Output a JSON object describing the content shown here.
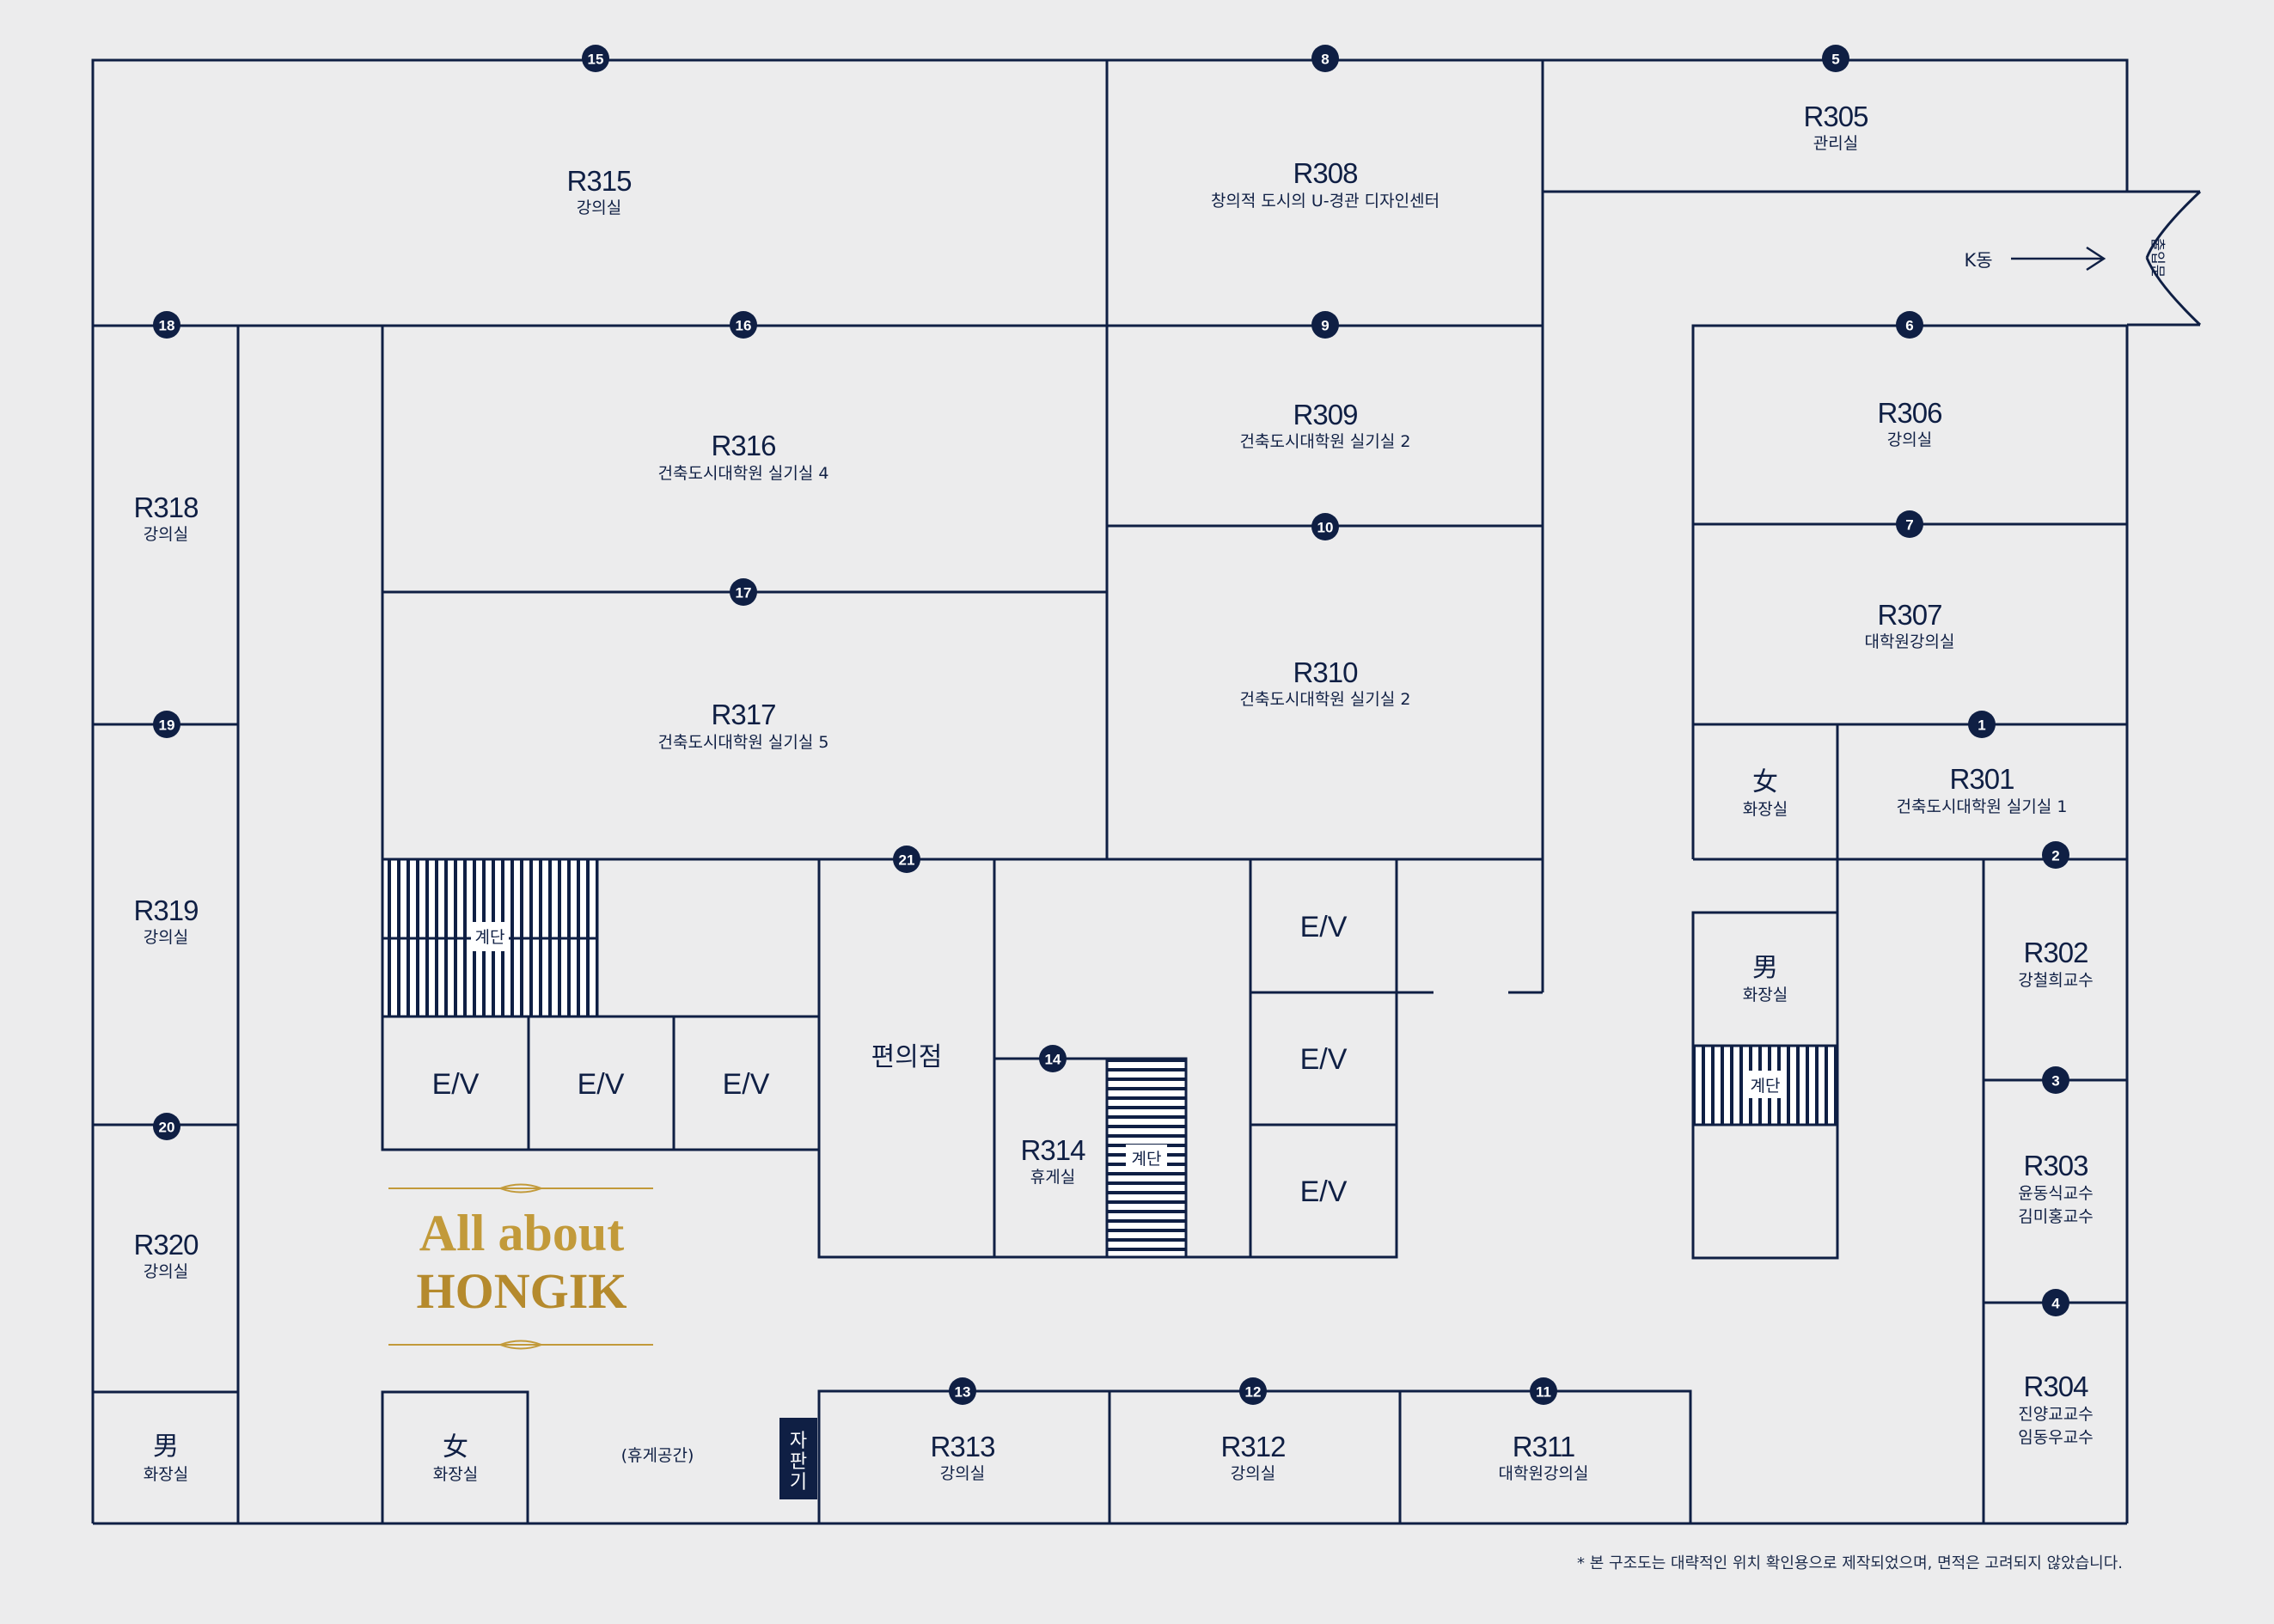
{
  "rooms": {
    "r315": {
      "id": "R315",
      "name": "강의실"
    },
    "r308": {
      "id": "R308",
      "name": "창의적 도시의 U-경관 디자인센터"
    },
    "r305": {
      "id": "R305",
      "name": "관리실"
    },
    "r316": {
      "id": "R316",
      "name": "건축도시대학원 실기실 4"
    },
    "r309": {
      "id": "R309",
      "name": "건축도시대학원 실기실 2"
    },
    "r306": {
      "id": "R306",
      "name": "강의실"
    },
    "r318": {
      "id": "R318",
      "name": "강의실"
    },
    "r317": {
      "id": "R317",
      "name": "건축도시대학원 실기실 5"
    },
    "r310": {
      "id": "R310",
      "name": "건축도시대학원 실기실 2"
    },
    "r307": {
      "id": "R307",
      "name": "대학원강의실"
    },
    "r301": {
      "id": "R301",
      "name": "건축도시대학원 실기실 1"
    },
    "r319": {
      "id": "R319",
      "name": "강의실"
    },
    "r302": {
      "id": "R302",
      "name": "강철희교수"
    },
    "r303": {
      "id": "R303",
      "name": "윤동식교수",
      "name2": "김미홍교수"
    },
    "r304": {
      "id": "R304",
      "name": "진양교교수",
      "name2": "임동우교수"
    },
    "r314": {
      "id": "R314",
      "name": "휴게실"
    },
    "r320": {
      "id": "R320",
      "name": "강의실"
    },
    "r313": {
      "id": "R313",
      "name": "강의실"
    },
    "r312": {
      "id": "R312",
      "name": "강의실"
    },
    "r311": {
      "id": "R311",
      "name": "대학원강의실"
    }
  },
  "facilities": {
    "ev_label": "E/V",
    "stairs_label": "계단",
    "store": "편의점",
    "restroom": "화장실",
    "female": "女",
    "male": "男",
    "lounge": "(휴게공간)",
    "vending": "자판기",
    "k_building": "K동",
    "exit": "출입문"
  },
  "markers": [
    "1",
    "2",
    "3",
    "4",
    "5",
    "6",
    "7",
    "8",
    "9",
    "10",
    "11",
    "12",
    "13",
    "14",
    "15",
    "16",
    "17",
    "18",
    "19",
    "20",
    "21"
  ],
  "logo": {
    "line1": "All about",
    "line2": "HONGIK"
  },
  "footnote": "* 본 구조도는 대략적인 위치 확인용으로 제작되었으며, 면적은 고려되지 않았습니다.",
  "colors": {
    "line": "#0f1f44",
    "background": "#ececed",
    "gold": "#c29a3a"
  }
}
